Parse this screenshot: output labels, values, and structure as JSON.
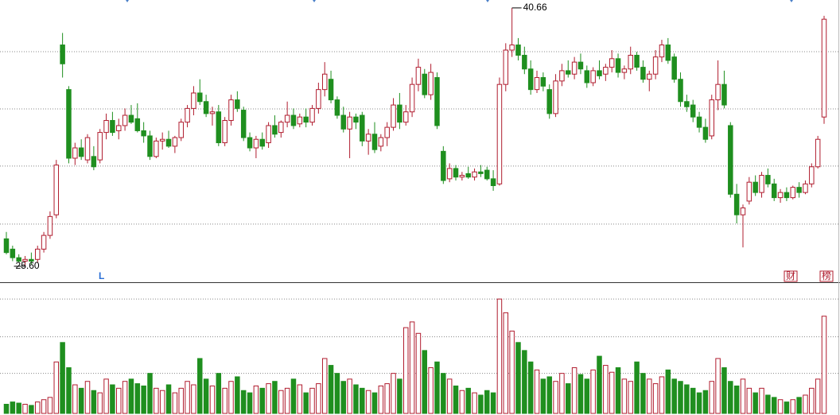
{
  "chart_data": {
    "type": "candlestick",
    "candles": [
      [
        27.2,
        27.6,
        26.3,
        26.4
      ],
      [
        26.6,
        26.8,
        25.9,
        26.1
      ],
      [
        26.1,
        26.3,
        25.8,
        25.9
      ],
      [
        25.9,
        26.2,
        25.6,
        26.0
      ],
      [
        26.0,
        26.4,
        25.7,
        25.9
      ],
      [
        26.0,
        26.8,
        25.8,
        26.6
      ],
      [
        26.6,
        27.6,
        26.4,
        27.4
      ],
      [
        27.4,
        28.8,
        27.2,
        28.5
      ],
      [
        28.6,
        31.8,
        28.4,
        31.5
      ],
      [
        38.5,
        39.2,
        36.6,
        37.4
      ],
      [
        35.9,
        36.1,
        31.6,
        31.9
      ],
      [
        31.9,
        32.8,
        31.5,
        32.5
      ],
      [
        32.5,
        33.0,
        31.8,
        32.0
      ],
      [
        31.8,
        33.3,
        31.6,
        33.1
      ],
      [
        32.0,
        32.6,
        31.2,
        31.4
      ],
      [
        31.8,
        33.6,
        31.6,
        33.4
      ],
      [
        33.4,
        34.5,
        33.0,
        34.1
      ],
      [
        34.1,
        34.6,
        33.2,
        33.4
      ],
      [
        33.5,
        34.2,
        33.0,
        33.8
      ],
      [
        33.8,
        34.8,
        33.5,
        34.4
      ],
      [
        34.4,
        35.0,
        33.9,
        34.0
      ],
      [
        34.2,
        35.1,
        33.4,
        33.5
      ],
      [
        33.5,
        34.0,
        32.8,
        33.2
      ],
      [
        33.2,
        33.5,
        31.8,
        32.0
      ],
      [
        32.0,
        33.1,
        31.9,
        32.9
      ],
      [
        32.9,
        33.4,
        32.4,
        33.0
      ],
      [
        33.0,
        33.5,
        32.5,
        32.6
      ],
      [
        32.6,
        33.2,
        32.2,
        33.1
      ],
      [
        33.1,
        34.2,
        32.9,
        34.0
      ],
      [
        34.0,
        35.0,
        33.7,
        34.8
      ],
      [
        34.8,
        36.1,
        34.4,
        35.7
      ],
      [
        35.7,
        36.5,
        35.0,
        35.2
      ],
      [
        35.2,
        35.6,
        34.3,
        34.5
      ],
      [
        34.5,
        34.9,
        33.8,
        34.6
      ],
      [
        34.6,
        35.0,
        32.6,
        32.8
      ],
      [
        32.8,
        34.3,
        32.6,
        34.1
      ],
      [
        34.1,
        35.6,
        33.8,
        35.3
      ],
      [
        35.3,
        35.8,
        34.6,
        34.8
      ],
      [
        34.7,
        34.9,
        32.9,
        33.1
      ],
      [
        33.1,
        33.4,
        32.3,
        32.5
      ],
      [
        32.5,
        33.2,
        31.9,
        33.0
      ],
      [
        33.0,
        33.4,
        32.4,
        32.6
      ],
      [
        32.8,
        34.0,
        32.5,
        33.8
      ],
      [
        33.8,
        34.4,
        33.1,
        33.3
      ],
      [
        33.4,
        34.1,
        33.1,
        34.0
      ],
      [
        34.0,
        35.2,
        33.7,
        34.4
      ],
      [
        34.4,
        34.8,
        33.6,
        33.8
      ],
      [
        33.9,
        34.5,
        33.7,
        34.3
      ],
      [
        34.3,
        34.8,
        33.7,
        34.0
      ],
      [
        34.0,
        35.0,
        33.8,
        34.8
      ],
      [
        34.8,
        36.3,
        34.5,
        35.9
      ],
      [
        35.9,
        37.5,
        35.5,
        36.8
      ],
      [
        36.5,
        37.0,
        35.1,
        35.3
      ],
      [
        35.3,
        35.5,
        34.2,
        34.4
      ],
      [
        34.4,
        34.9,
        33.4,
        33.6
      ],
      [
        33.6,
        34.6,
        31.9,
        34.3
      ],
      [
        34.3,
        34.5,
        33.6,
        34.0
      ],
      [
        34.4,
        34.6,
        32.6,
        32.9
      ],
      [
        32.9,
        33.6,
        32.1,
        33.3
      ],
      [
        33.3,
        34.0,
        32.2,
        32.4
      ],
      [
        32.6,
        33.3,
        32.3,
        33.1
      ],
      [
        33.1,
        34.0,
        32.6,
        33.7
      ],
      [
        33.7,
        35.4,
        33.5,
        35.0
      ],
      [
        35.0,
        35.7,
        33.6,
        34.0
      ],
      [
        34.0,
        35.0,
        33.8,
        34.6
      ],
      [
        34.6,
        36.6,
        34.3,
        36.2
      ],
      [
        36.2,
        37.7,
        35.8,
        37.2
      ],
      [
        36.8,
        37.1,
        35.4,
        35.6
      ],
      [
        35.6,
        37.4,
        35.3,
        36.9
      ],
      [
        36.6,
        36.9,
        33.6,
        33.8
      ],
      [
        32.3,
        32.6,
        30.4,
        30.6
      ],
      [
        30.7,
        31.6,
        30.5,
        31.3
      ],
      [
        31.3,
        31.5,
        30.6,
        30.8
      ],
      [
        30.8,
        31.1,
        30.6,
        30.9
      ],
      [
        31.0,
        31.4,
        30.7,
        30.8
      ],
      [
        30.8,
        31.3,
        30.6,
        31.1
      ],
      [
        31.1,
        31.5,
        30.8,
        31.0
      ],
      [
        31.2,
        31.4,
        30.6,
        30.7
      ],
      [
        30.7,
        31.2,
        30.0,
        30.3
      ],
      [
        30.4,
        36.6,
        30.3,
        36.2
      ],
      [
        36.2,
        38.6,
        35.8,
        38.2
      ],
      [
        38.2,
        40.66,
        37.8,
        38.5
      ],
      [
        38.5,
        38.9,
        37.6,
        37.9
      ],
      [
        37.9,
        38.4,
        36.8,
        37.1
      ],
      [
        37.1,
        37.6,
        35.6,
        35.9
      ],
      [
        35.9,
        37.0,
        35.7,
        36.6
      ],
      [
        36.6,
        36.9,
        35.8,
        36.1
      ],
      [
        35.9,
        36.2,
        34.2,
        34.5
      ],
      [
        34.5,
        36.8,
        34.3,
        36.4
      ],
      [
        36.4,
        37.4,
        36.1,
        37.0
      ],
      [
        37.0,
        37.6,
        36.6,
        36.8
      ],
      [
        36.8,
        37.8,
        36.5,
        37.5
      ],
      [
        37.5,
        38.0,
        36.8,
        37.1
      ],
      [
        37.0,
        37.3,
        36.0,
        36.3
      ],
      [
        36.3,
        37.2,
        36.1,
        37.0
      ],
      [
        37.0,
        37.6,
        36.5,
        36.7
      ],
      [
        36.8,
        37.4,
        36.4,
        37.2
      ],
      [
        37.2,
        38.2,
        36.9,
        37.7
      ],
      [
        37.7,
        38.0,
        36.6,
        36.9
      ],
      [
        36.9,
        37.3,
        36.5,
        37.1
      ],
      [
        37.1,
        38.4,
        36.8,
        37.9
      ],
      [
        37.9,
        38.1,
        37.0,
        37.2
      ],
      [
        37.2,
        37.6,
        36.3,
        36.5
      ],
      [
        36.5,
        37.0,
        35.8,
        36.8
      ],
      [
        36.8,
        38.2,
        36.5,
        37.8
      ],
      [
        37.8,
        38.8,
        37.5,
        38.5
      ],
      [
        38.5,
        38.9,
        37.4,
        37.6
      ],
      [
        37.8,
        38.0,
        36.3,
        36.5
      ],
      [
        36.5,
        36.9,
        34.9,
        35.2
      ],
      [
        35.2,
        35.6,
        34.6,
        34.9
      ],
      [
        35.0,
        35.3,
        34.0,
        34.3
      ],
      [
        34.3,
        34.6,
        33.4,
        33.7
      ],
      [
        33.7,
        34.2,
        32.8,
        33.0
      ],
      [
        33.2,
        35.6,
        33.0,
        35.3
      ],
      [
        35.3,
        37.6,
        34.7,
        36.2
      ],
      [
        36.2,
        37.0,
        34.8,
        35.0
      ],
      [
        33.8,
        34.0,
        29.6,
        29.8
      ],
      [
        29.8,
        30.4,
        28.1,
        28.6
      ],
      [
        28.6,
        29.2,
        26.7,
        29.0
      ],
      [
        29.4,
        30.8,
        29.2,
        30.5
      ],
      [
        30.5,
        30.9,
        29.7,
        29.9
      ],
      [
        29.9,
        31.1,
        29.6,
        30.9
      ],
      [
        30.9,
        31.3,
        30.2,
        30.4
      ],
      [
        30.4,
        30.7,
        29.4,
        29.6
      ],
      [
        29.6,
        30.1,
        29.3,
        29.9
      ],
      [
        29.9,
        30.2,
        29.4,
        29.6
      ],
      [
        29.6,
        30.3,
        29.5,
        30.2
      ],
      [
        30.2,
        30.5,
        29.6,
        29.9
      ],
      [
        29.9,
        30.6,
        29.8,
        30.4
      ],
      [
        30.4,
        31.6,
        30.2,
        31.4
      ],
      [
        31.4,
        33.2,
        31.3,
        33.0
      ],
      [
        34.3,
        40.2,
        33.9,
        40.0
      ]
    ],
    "volume": [
      8,
      10,
      9,
      8,
      7,
      10,
      12,
      14,
      45,
      62,
      40,
      25,
      22,
      28,
      20,
      18,
      30,
      25,
      22,
      28,
      30,
      26,
      24,
      35,
      22,
      20,
      25,
      18,
      22,
      28,
      25,
      48,
      30,
      24,
      35,
      22,
      28,
      32,
      20,
      18,
      24,
      22,
      26,
      28,
      20,
      22,
      30,
      25,
      18,
      22,
      26,
      48,
      42,
      35,
      28,
      30,
      25,
      22,
      20,
      18,
      24,
      26,
      35,
      30,
      75,
      80,
      70,
      55,
      40,
      45,
      35,
      30,
      24,
      20,
      22,
      18,
      16,
      20,
      18,
      100,
      88,
      72,
      62,
      55,
      45,
      38,
      30,
      32,
      28,
      35,
      26,
      40,
      34,
      30,
      38,
      50,
      42,
      36,
      40,
      30,
      28,
      45,
      35,
      30,
      26,
      32,
      38,
      30,
      28,
      25,
      22,
      18,
      20,
      28,
      48,
      40,
      28,
      24,
      30,
      22,
      18,
      22,
      16,
      14,
      12,
      10,
      12,
      14,
      16,
      22,
      30,
      85
    ],
    "ylim": [
      24.67,
      41.12
    ],
    "yticks": [
      28.06,
      31.44,
      34.77,
      38.11
    ],
    "vlim": [
      0,
      114
    ],
    "vticks": [
      35,
      67,
      100
    ],
    "up_color": "#b01c2e",
    "down_color": "#1f8f1f",
    "grid": true,
    "annotations": {
      "high": "40.66",
      "low": "25.60",
      "marker": "L",
      "badges": [
        "财",
        "榜"
      ]
    }
  }
}
